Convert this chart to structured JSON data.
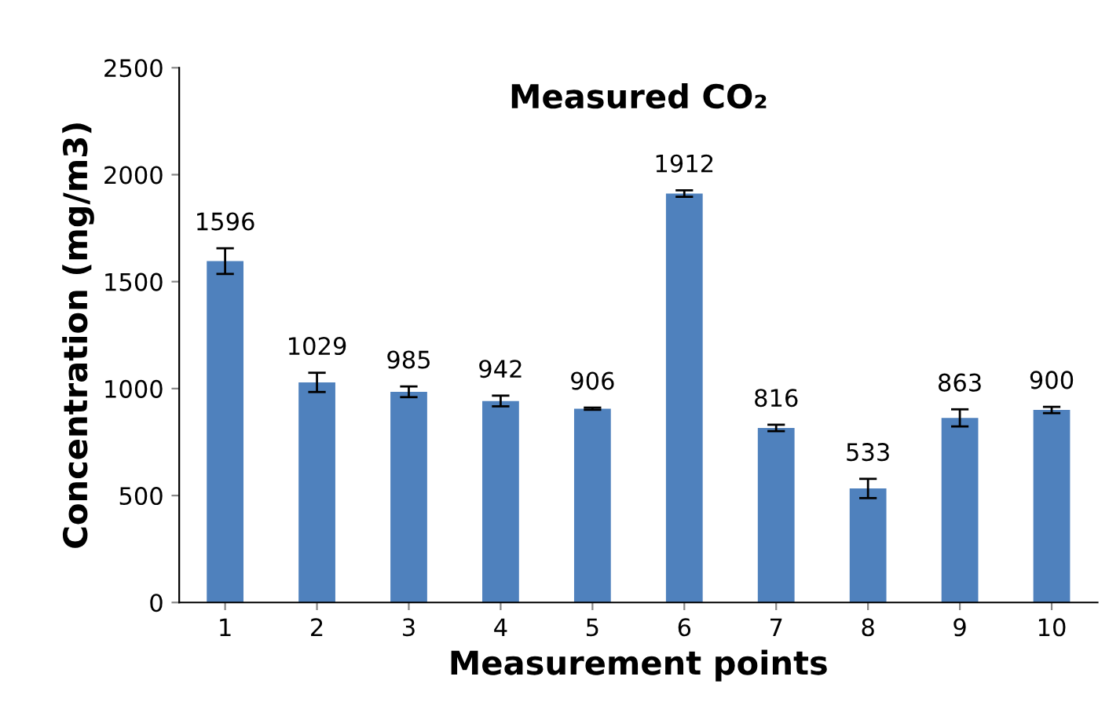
{
  "chart_data": {
    "type": "bar",
    "title": "Measured CO₂",
    "xlabel": "Measurement points",
    "ylabel": "Concentration (mg/m3)",
    "categories": [
      "1",
      "2",
      "3",
      "4",
      "5",
      "6",
      "7",
      "8",
      "9",
      "10"
    ],
    "values": [
      1596,
      1029,
      985,
      942,
      906,
      1912,
      816,
      533,
      863,
      900
    ],
    "errors": [
      60,
      45,
      25,
      25,
      5,
      15,
      15,
      45,
      40,
      15
    ],
    "color": "#4f81bd",
    "data_labels": true,
    "ylim": [
      0,
      2500
    ],
    "yticks": [
      0,
      500,
      1000,
      1500,
      2000,
      2500
    ],
    "grid": false,
    "legend": false
  }
}
